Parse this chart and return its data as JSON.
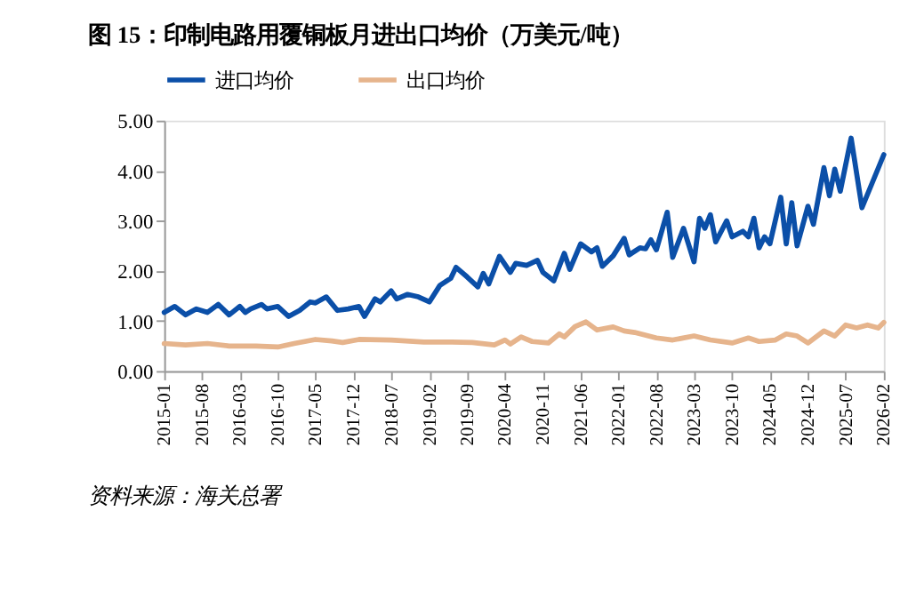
{
  "chart_data": {
    "type": "line",
    "title": "图 15：印制电路用覆铜板月进出口均价（万美元/吨）",
    "annotations": [
      "资料来源：海关总署"
    ],
    "legend": "top",
    "grid": false,
    "marker": "none",
    "line_style": "solid",
    "xlim": [
      "2015-01",
      "2026-02"
    ],
    "xticks": [
      "2015-01",
      "2015-08",
      "2016-03",
      "2016-10",
      "2017-05",
      "2017-12",
      "2018-07",
      "2019-02",
      "2019-09",
      "2020-04",
      "2020-11",
      "2021-06",
      "2022-01",
      "2022-08",
      "2023-03",
      "2023-10",
      "2024-05",
      "2024-12",
      "2025-07",
      "2026-02"
    ],
    "ylim": [
      0,
      5
    ],
    "yticks": [
      {
        "value": 0,
        "label": "0.00"
      },
      {
        "value": 1,
        "label": "1.00"
      },
      {
        "value": 2,
        "label": "2.00"
      },
      {
        "value": 3,
        "label": "3.00"
      },
      {
        "value": 4,
        "label": "4.00"
      },
      {
        "value": 5,
        "label": "5.00"
      }
    ],
    "series": [
      {
        "name": "进口均价",
        "color": "#0b4fa8",
        "x": [
          "2015-01",
          "2015-03",
          "2015-05",
          "2015-07",
          "2015-09",
          "2015-11",
          "2016-01",
          "2016-03",
          "2016-04",
          "2016-05",
          "2016-07",
          "2016-08",
          "2016-10",
          "2016-12",
          "2017-02",
          "2017-04",
          "2017-05",
          "2017-07",
          "2017-09",
          "2017-11",
          "2018-01",
          "2018-02",
          "2018-04",
          "2018-05",
          "2018-07",
          "2018-08",
          "2018-10",
          "2018-12",
          "2019-02",
          "2019-04",
          "2019-06",
          "2019-07",
          "2019-09",
          "2019-11",
          "2019-12",
          "2020-01",
          "2020-03",
          "2020-05",
          "2020-06",
          "2020-08",
          "2020-10",
          "2020-11",
          "2021-01",
          "2021-03",
          "2021-04",
          "2021-06",
          "2021-08",
          "2021-09",
          "2021-10",
          "2021-12",
          "2022-02",
          "2022-03",
          "2022-05",
          "2022-06",
          "2022-07",
          "2022-08",
          "2022-10",
          "2022-11",
          "2023-01",
          "2023-03",
          "2023-04",
          "2023-05",
          "2023-06",
          "2023-07",
          "2023-09",
          "2023-10",
          "2023-12",
          "2024-01",
          "2024-02",
          "2024-03",
          "2024-04",
          "2024-05",
          "2024-07",
          "2024-08",
          "2024-09",
          "2024-10",
          "2024-12",
          "2025-01",
          "2025-03",
          "2025-04",
          "2025-05",
          "2025-06",
          "2025-08",
          "2025-10",
          "2026-02"
        ],
        "values": [
          1.17,
          1.29,
          1.12,
          1.24,
          1.17,
          1.33,
          1.12,
          1.29,
          1.17,
          1.24,
          1.33,
          1.24,
          1.29,
          1.09,
          1.21,
          1.38,
          1.36,
          1.48,
          1.21,
          1.24,
          1.29,
          1.09,
          1.44,
          1.38,
          1.6,
          1.44,
          1.53,
          1.48,
          1.38,
          1.71,
          1.85,
          2.07,
          1.88,
          1.68,
          1.95,
          1.74,
          2.29,
          1.97,
          2.15,
          2.11,
          2.21,
          1.97,
          1.8,
          2.35,
          2.03,
          2.54,
          2.38,
          2.46,
          2.09,
          2.3,
          2.65,
          2.32,
          2.46,
          2.44,
          2.62,
          2.42,
          3.17,
          2.27,
          2.85,
          2.18,
          3.05,
          2.85,
          3.12,
          2.58,
          3.0,
          2.68,
          2.79,
          2.68,
          3.05,
          2.46,
          2.68,
          2.54,
          3.47,
          2.54,
          3.36,
          2.5,
          3.29,
          2.93,
          4.06,
          3.5,
          4.03,
          3.59,
          4.65,
          3.26,
          4.32
        ]
      },
      {
        "name": "出口均价",
        "color": "#e6b48c",
        "x": [
          "2015-01",
          "2015-05",
          "2015-09",
          "2016-01",
          "2016-06",
          "2016-10",
          "2017-01",
          "2017-05",
          "2017-08",
          "2017-10",
          "2018-01",
          "2018-07",
          "2019-01",
          "2019-06",
          "2019-10",
          "2020-02",
          "2020-04",
          "2020-05",
          "2020-07",
          "2020-09",
          "2020-12",
          "2021-02",
          "2021-03",
          "2021-05",
          "2021-07",
          "2021-09",
          "2021-12",
          "2022-02",
          "2022-04",
          "2022-08",
          "2022-11",
          "2023-03",
          "2023-06",
          "2023-10",
          "2024-01",
          "2024-03",
          "2024-06",
          "2024-08",
          "2024-10",
          "2024-12",
          "2025-03",
          "2025-05",
          "2025-07",
          "2025-09",
          "2025-11",
          "2026-01",
          "2026-02"
        ],
        "values": [
          0.55,
          0.52,
          0.55,
          0.5,
          0.5,
          0.48,
          0.55,
          0.63,
          0.6,
          0.57,
          0.63,
          0.62,
          0.58,
          0.58,
          0.57,
          0.52,
          0.62,
          0.54,
          0.68,
          0.59,
          0.56,
          0.74,
          0.68,
          0.89,
          0.98,
          0.82,
          0.88,
          0.8,
          0.77,
          0.66,
          0.62,
          0.7,
          0.62,
          0.56,
          0.66,
          0.59,
          0.62,
          0.74,
          0.7,
          0.56,
          0.8,
          0.7,
          0.92,
          0.86,
          0.92,
          0.86,
          0.97
        ]
      }
    ]
  }
}
